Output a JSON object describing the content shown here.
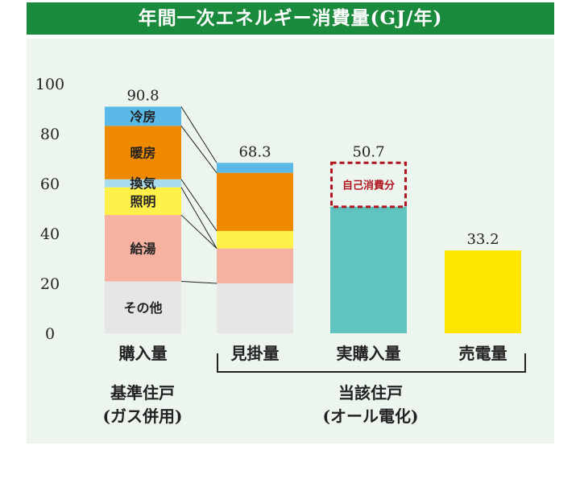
{
  "title": "年間一次エネルギー消費量(GJ/年)",
  "colors": {
    "header_bg": "#1a8a3c",
    "panel_bg": "#ecf6ee",
    "冷房": "#5bb9e8",
    "暖房": "#ef8a00",
    "換気": "#a9dcef",
    "照明": "#fff04a",
    "給湯": "#f6b1a1",
    "その他": "#e6e6e6",
    "実購入量": "#5fc4bf",
    "売電量": "#ffe600",
    "dashed": "#b0141e"
  },
  "chart_data": {
    "type": "bar",
    "ylim": [
      0,
      100
    ],
    "yticks": [
      0,
      20,
      40,
      60,
      80,
      100
    ],
    "grid": false,
    "categories": [
      "購入量",
      "見掛量",
      "実購入量",
      "売電量"
    ],
    "bars": [
      {
        "category": "購入量",
        "total_label": "90.8",
        "segments": [
          {
            "name": "その他",
            "value": 20.8
          },
          {
            "name": "給湯",
            "value": 26.6
          },
          {
            "name": "照明",
            "value": 11.1
          },
          {
            "name": "換気",
            "value": 3.2
          },
          {
            "name": "暖房",
            "value": 21.4
          },
          {
            "name": "冷房",
            "value": 7.7
          }
        ]
      },
      {
        "category": "見掛量",
        "total_label": "68.3",
        "segments": [
          {
            "name": "その他",
            "value": 20.0
          },
          {
            "name": "給湯",
            "value": 14.0
          },
          {
            "name": "照明",
            "value": 7.0
          },
          {
            "name": "換気",
            "value": 0.0
          },
          {
            "name": "暖房",
            "value": 23.3
          },
          {
            "name": "冷房",
            "value": 4.0
          }
        ]
      },
      {
        "category": "実購入量",
        "total_label": "50.7",
        "value": 50.7,
        "overlay": {
          "label": "自己消費分",
          "from": 50.7,
          "to": 68.3
        }
      },
      {
        "category": "売電量",
        "total_label": "33.2",
        "value": 33.2
      }
    ],
    "group_labels": [
      {
        "line1": "基準住戸",
        "line2": "(ガス併用)"
      },
      {
        "line1": "当該住戸",
        "line2": "(オール電化)"
      }
    ]
  }
}
